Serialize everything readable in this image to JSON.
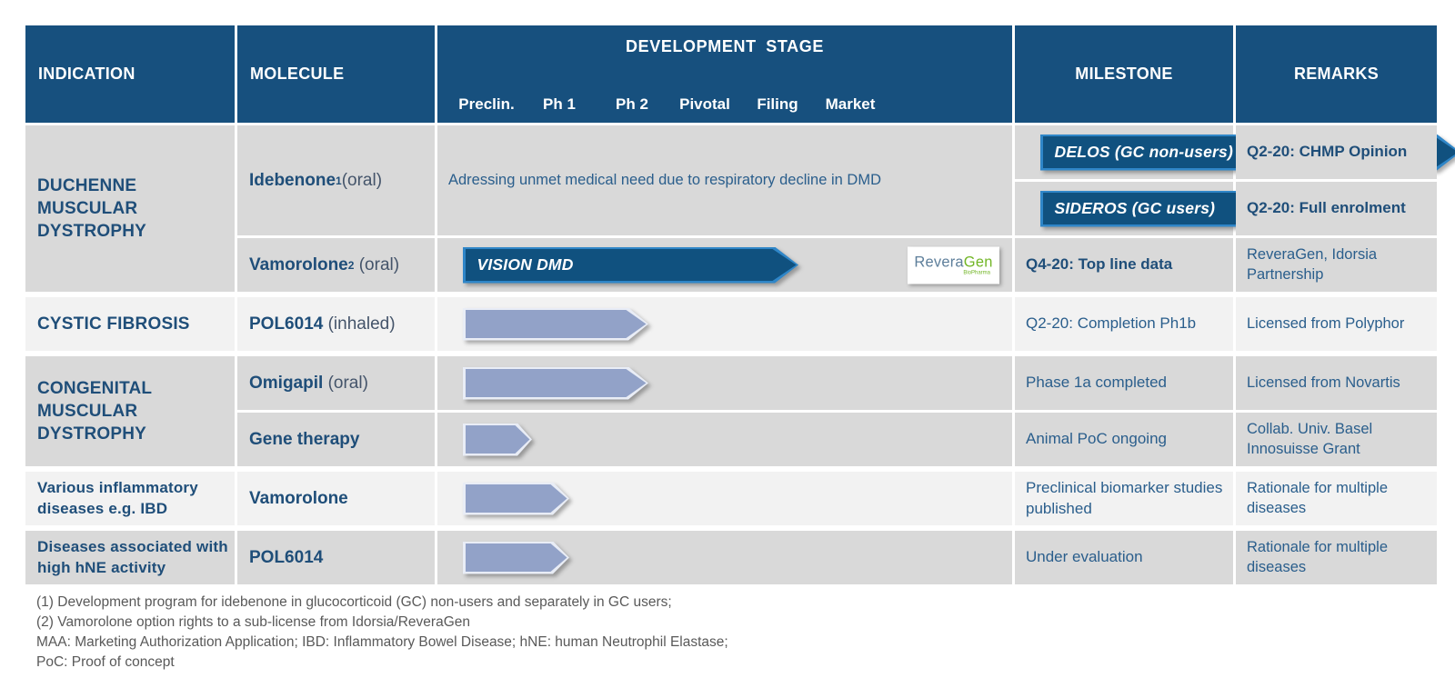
{
  "header": {
    "indication_label": "INDICATION",
    "molecule_label": "MOLECULE",
    "dev_stage_label": "DEVELOPMENT STAGE",
    "stage_labels": [
      "Preclin.",
      "Ph 1",
      "Ph 2",
      "Pivotal",
      "Filing",
      "Market"
    ],
    "milestone_label": "MILESTONE",
    "remarks_label": "REMARKS"
  },
  "colors": {
    "header_bg": "#17507E",
    "row_gray": "#D9D9D9",
    "row_light": "#F2F2F2",
    "arrow_dark_fill": "#10517F",
    "arrow_dark_border": "#2F86C8",
    "arrow_light_fill": "#92A2C8",
    "text_blue": "#1F4E79",
    "footnote_gray": "#595959",
    "logo_green": "#72B626"
  },
  "groups": [
    {
      "indication": "DUCHENNE MUSCULAR DYSTROPHY",
      "molecules": [
        {
          "bold": "Idebenone",
          "sup": "1",
          "rest": "(oral)"
        },
        {
          "bold": "Vamorolone",
          "sup": "2",
          "rest": " (oral)"
        }
      ],
      "rows": [
        {
          "arrow": {
            "type": "dark",
            "len": 462,
            "tip": 26,
            "label": "DELOS (GC non-users)",
            "ends_at": "Filing"
          },
          "milestone": "Q2-20: CHMP Opinion"
        },
        {
          "arrow": {
            "type": "dark",
            "len": 369,
            "tip": 26,
            "label": "SIDEROS (GC users)",
            "ends_at": "Pivotal"
          },
          "milestone": "Q2-20: Full enrolment"
        },
        {
          "arrow": {
            "type": "dark",
            "len": 369,
            "tip": 26,
            "label": "VISION DMD",
            "ends_at": "Pivotal"
          },
          "milestone": "Q4-20: Top line data"
        }
      ],
      "logo": {
        "part1": "Revera",
        "part2": "Gen",
        "sub": "BioPharma"
      },
      "remarks": [
        "Adressing unmet medical need due to respiratory decline in DMD",
        "ReveraGen, Idorsia Partnership"
      ]
    },
    {
      "indication": "CYSTIC FIBROSIS",
      "molecules": [
        {
          "bold": "POL6014",
          "rest": " (inhaled)"
        }
      ],
      "rows": [
        {
          "arrow": {
            "type": "light",
            "len": 204,
            "tip": 22,
            "ends_at": "Ph 2"
          },
          "milestone": "Q2-20: Completion Ph1b"
        }
      ],
      "remarks": [
        "Licensed from Polyphor"
      ]
    },
    {
      "indication": "CONGENITAL MUSCULAR DYSTROPHY",
      "molecules": [
        {
          "bold": "Omigapil",
          "rest": " (oral)"
        },
        {
          "bold": "Gene therapy"
        }
      ],
      "rows": [
        {
          "arrow": {
            "type": "light",
            "len": 204,
            "tip": 22,
            "ends_at": "Ph 2"
          },
          "milestone": "Phase 1a completed"
        },
        {
          "arrow": {
            "type": "light",
            "len": 76,
            "tip": 16,
            "ends_at": "Preclin."
          },
          "milestone": "Animal PoC ongoing"
        }
      ],
      "remarks": [
        "Licensed from Novartis",
        "Collab. Univ. Basel Innosuisse Grant"
      ]
    },
    {
      "indication": "Various inflammatory diseases e.g. IBD",
      "molecules": [
        {
          "bold": "Vamorolone"
        }
      ],
      "rows": [
        {
          "arrow": {
            "type": "light",
            "len": 117,
            "tip": 18,
            "ends_at": "Ph 1"
          },
          "milestone": "Preclinical biomarker studies published"
        }
      ],
      "remarks": [
        "Rationale for multiple diseases"
      ]
    },
    {
      "indication": "Diseases associated with high hNE activity",
      "molecules": [
        {
          "bold": "POL6014"
        }
      ],
      "rows": [
        {
          "arrow": {
            "type": "light",
            "len": 117,
            "tip": 18,
            "ends_at": "Ph 1"
          },
          "milestone": "Under evaluation"
        }
      ],
      "remarks": [
        "Rationale for multiple diseases"
      ]
    }
  ],
  "footnotes": [
    "(1) Development program for idebenone in glucocorticoid (GC) non-users and separately in GC users;",
    "(2) Vamorolone option rights to a sub-license from Idorsia/ReveraGen",
    "MAA: Marketing Authorization Application; IBD: Inflammatory Bowel Disease; hNE: human Neutrophil Elastase;",
    "PoC: Proof of concept"
  ]
}
